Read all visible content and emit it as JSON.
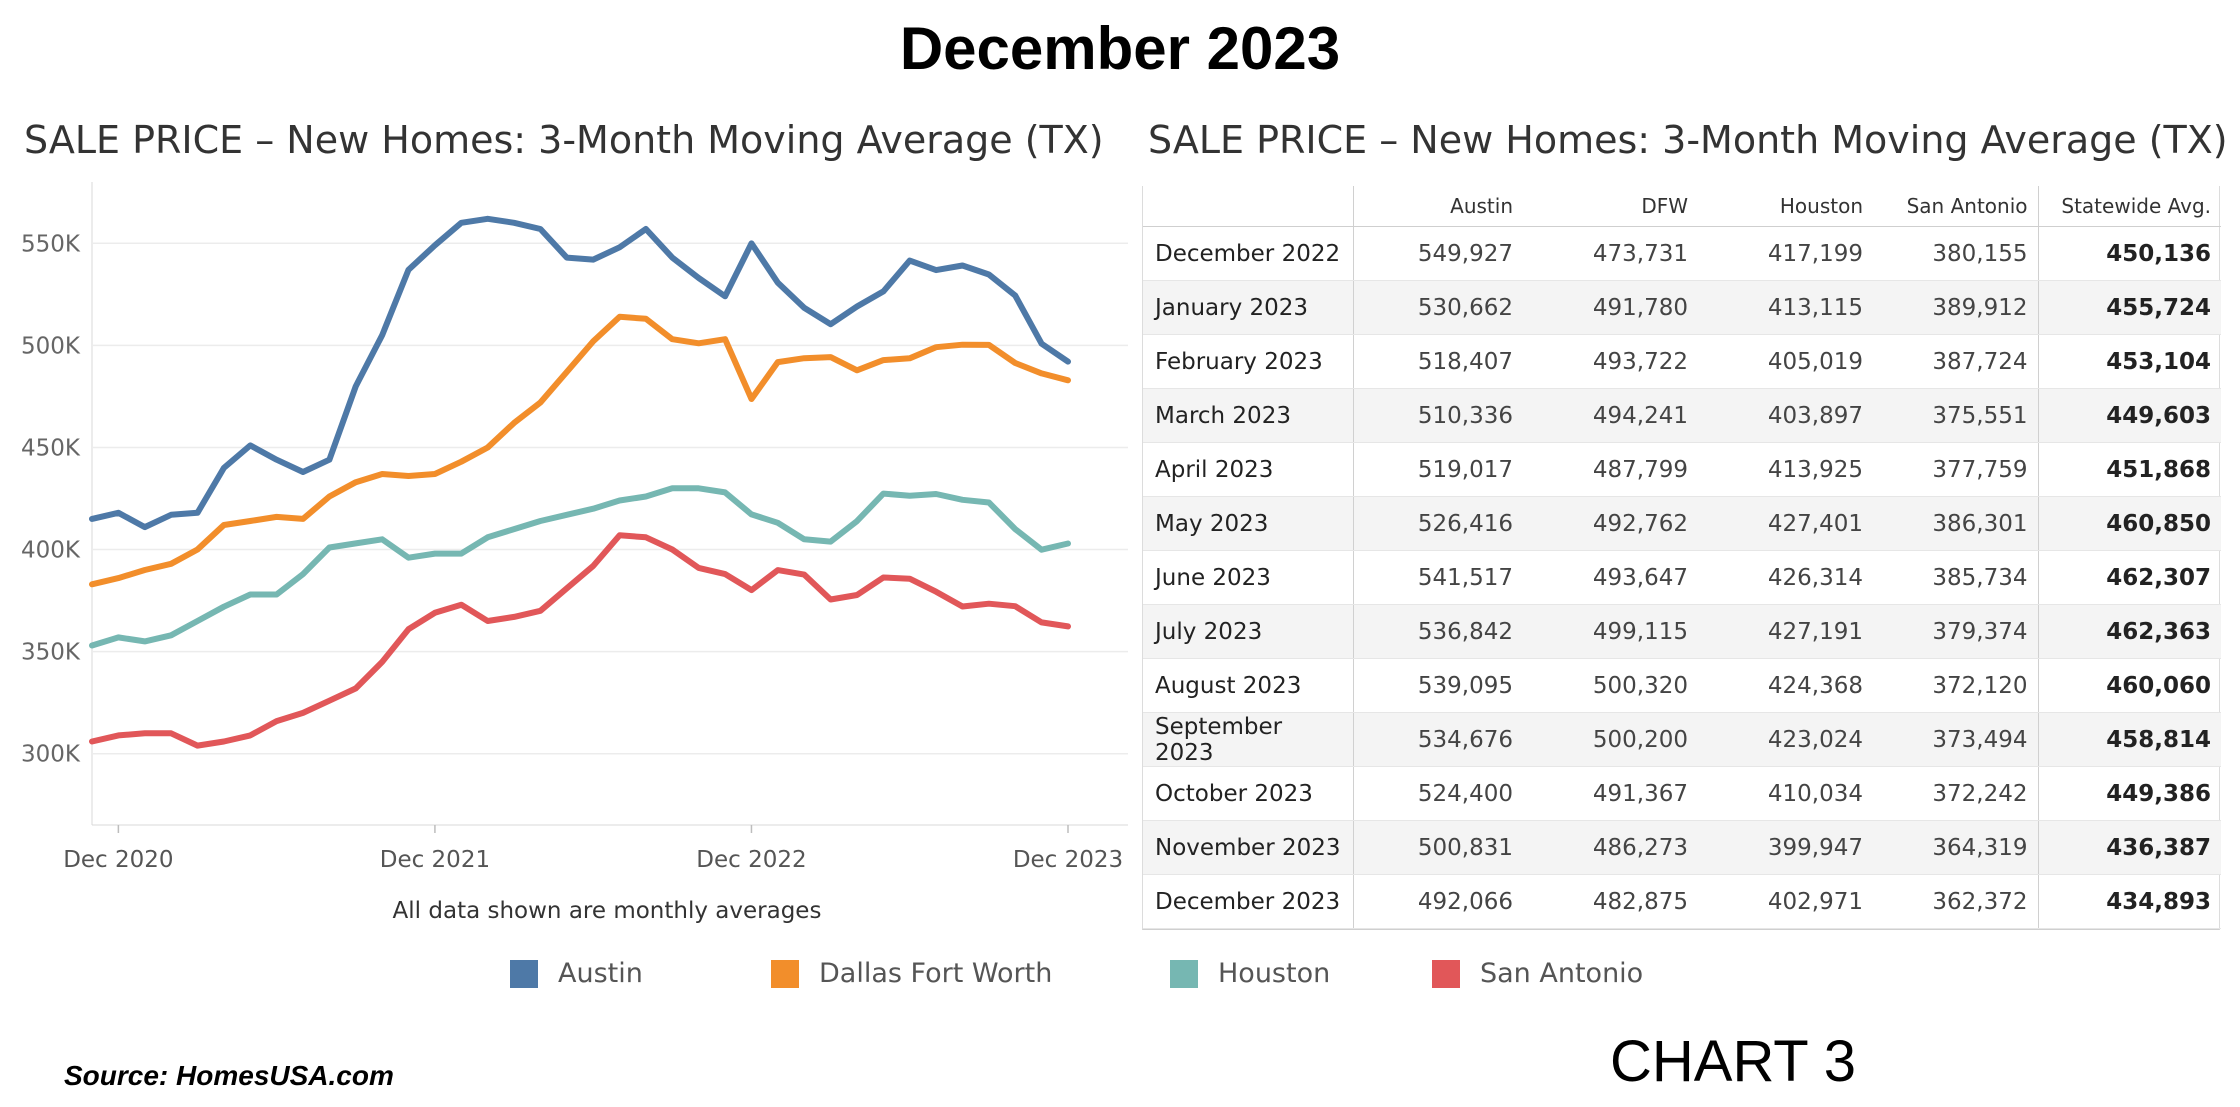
{
  "page_title": "December 2023",
  "source": "Source:  HomesUSA.com",
  "chart_label": "CHART 3",
  "chart_data": [
    {
      "type": "line",
      "title": "SALE PRICE – New Homes: 3-Month Moving Average (TX)",
      "note": "All data shown are monthly averages",
      "xlabel": "",
      "ylabel": "",
      "ylim": [
        270000,
        580000
      ],
      "y_ticks": [
        {
          "value": 300000,
          "label": "300K"
        },
        {
          "value": 350000,
          "label": "350K"
        },
        {
          "value": 400000,
          "label": "400K"
        },
        {
          "value": 450000,
          "label": "450K"
        },
        {
          "value": 500000,
          "label": "500K"
        },
        {
          "value": 550000,
          "label": "550K"
        }
      ],
      "x_ticks": [
        {
          "index": 1,
          "label": "Dec 2020"
        },
        {
          "index": 13,
          "label": "Dec 2021"
        },
        {
          "index": 25,
          "label": "Dec 2022"
        },
        {
          "index": 37,
          "label": "Dec 2023"
        }
      ],
      "x_start": "Nov 2020",
      "x_end": "Dec 2023",
      "grid": true,
      "legend_position": "bottom",
      "series": [
        {
          "name": "Austin",
          "color": "#4e79a7",
          "values": [
            415000,
            418000,
            411000,
            417000,
            418000,
            440000,
            451000,
            444000,
            438000,
            444000,
            480000,
            505000,
            537000,
            549000,
            560000,
            562000,
            560000,
            557000,
            543000,
            542000,
            548000,
            557000,
            543000,
            533000,
            524000,
            549927,
            530662,
            518407,
            510336,
            519017,
            526416,
            541517,
            536842,
            539095,
            534676,
            524400,
            500831,
            492066
          ]
        },
        {
          "name": "Dallas Fort Worth",
          "color": "#f28e2b",
          "values": [
            383000,
            386000,
            390000,
            393000,
            400000,
            412000,
            414000,
            416000,
            415000,
            426000,
            433000,
            437000,
            436000,
            437000,
            443000,
            450000,
            462000,
            472000,
            487000,
            502000,
            514000,
            513000,
            503000,
            501000,
            503000,
            473731,
            491780,
            493722,
            494241,
            487799,
            492762,
            493647,
            499115,
            500320,
            500200,
            491367,
            486273,
            482875
          ]
        },
        {
          "name": "Houston",
          "color": "#76b7b2",
          "values": [
            353000,
            357000,
            355000,
            358000,
            365000,
            372000,
            378000,
            378000,
            388000,
            401000,
            403000,
            405000,
            396000,
            398000,
            398000,
            406000,
            410000,
            414000,
            417000,
            420000,
            424000,
            426000,
            430000,
            430000,
            428000,
            417199,
            413115,
            405019,
            403897,
            413925,
            427401,
            426314,
            427191,
            424368,
            423024,
            410034,
            399947,
            402971
          ]
        },
        {
          "name": "San Antonio",
          "color": "#e15759",
          "values": [
            306000,
            309000,
            310000,
            310000,
            304000,
            306000,
            309000,
            316000,
            320000,
            326000,
            332000,
            345000,
            361000,
            369000,
            373000,
            365000,
            367000,
            370000,
            381000,
            392000,
            407000,
            406000,
            400000,
            391000,
            388000,
            380155,
            389912,
            387724,
            375551,
            377759,
            386301,
            385734,
            379374,
            372120,
            373494,
            372242,
            364319,
            362372
          ]
        }
      ]
    },
    {
      "type": "table",
      "title": "SALE PRICE – New Homes: 3-Month Moving Average (TX)",
      "columns": [
        "",
        "Austin",
        "DFW",
        "Houston",
        "San Antonio",
        "Statewide Avg."
      ],
      "rows": [
        [
          "December 2022",
          "549,927",
          "473,731",
          "417,199",
          "380,155",
          "450,136"
        ],
        [
          "January 2023",
          "530,662",
          "491,780",
          "413,115",
          "389,912",
          "455,724"
        ],
        [
          "February 2023",
          "518,407",
          "493,722",
          "405,019",
          "387,724",
          "453,104"
        ],
        [
          "March 2023",
          "510,336",
          "494,241",
          "403,897",
          "375,551",
          "449,603"
        ],
        [
          "April 2023",
          "519,017",
          "487,799",
          "413,925",
          "377,759",
          "451,868"
        ],
        [
          "May 2023",
          "526,416",
          "492,762",
          "427,401",
          "386,301",
          "460,850"
        ],
        [
          "June 2023",
          "541,517",
          "493,647",
          "426,314",
          "385,734",
          "462,307"
        ],
        [
          "July 2023",
          "536,842",
          "499,115",
          "427,191",
          "379,374",
          "462,363"
        ],
        [
          "August 2023",
          "539,095",
          "500,320",
          "424,368",
          "372,120",
          "460,060"
        ],
        [
          "September 2023",
          "534,676",
          "500,200",
          "423,024",
          "373,494",
          "458,814"
        ],
        [
          "October 2023",
          "524,400",
          "491,367",
          "410,034",
          "372,242",
          "449,386"
        ],
        [
          "November 2023",
          "500,831",
          "486,273",
          "399,947",
          "364,319",
          "436,387"
        ],
        [
          "December 2023",
          "492,066",
          "482,875",
          "402,971",
          "362,372",
          "434,893"
        ]
      ]
    }
  ]
}
